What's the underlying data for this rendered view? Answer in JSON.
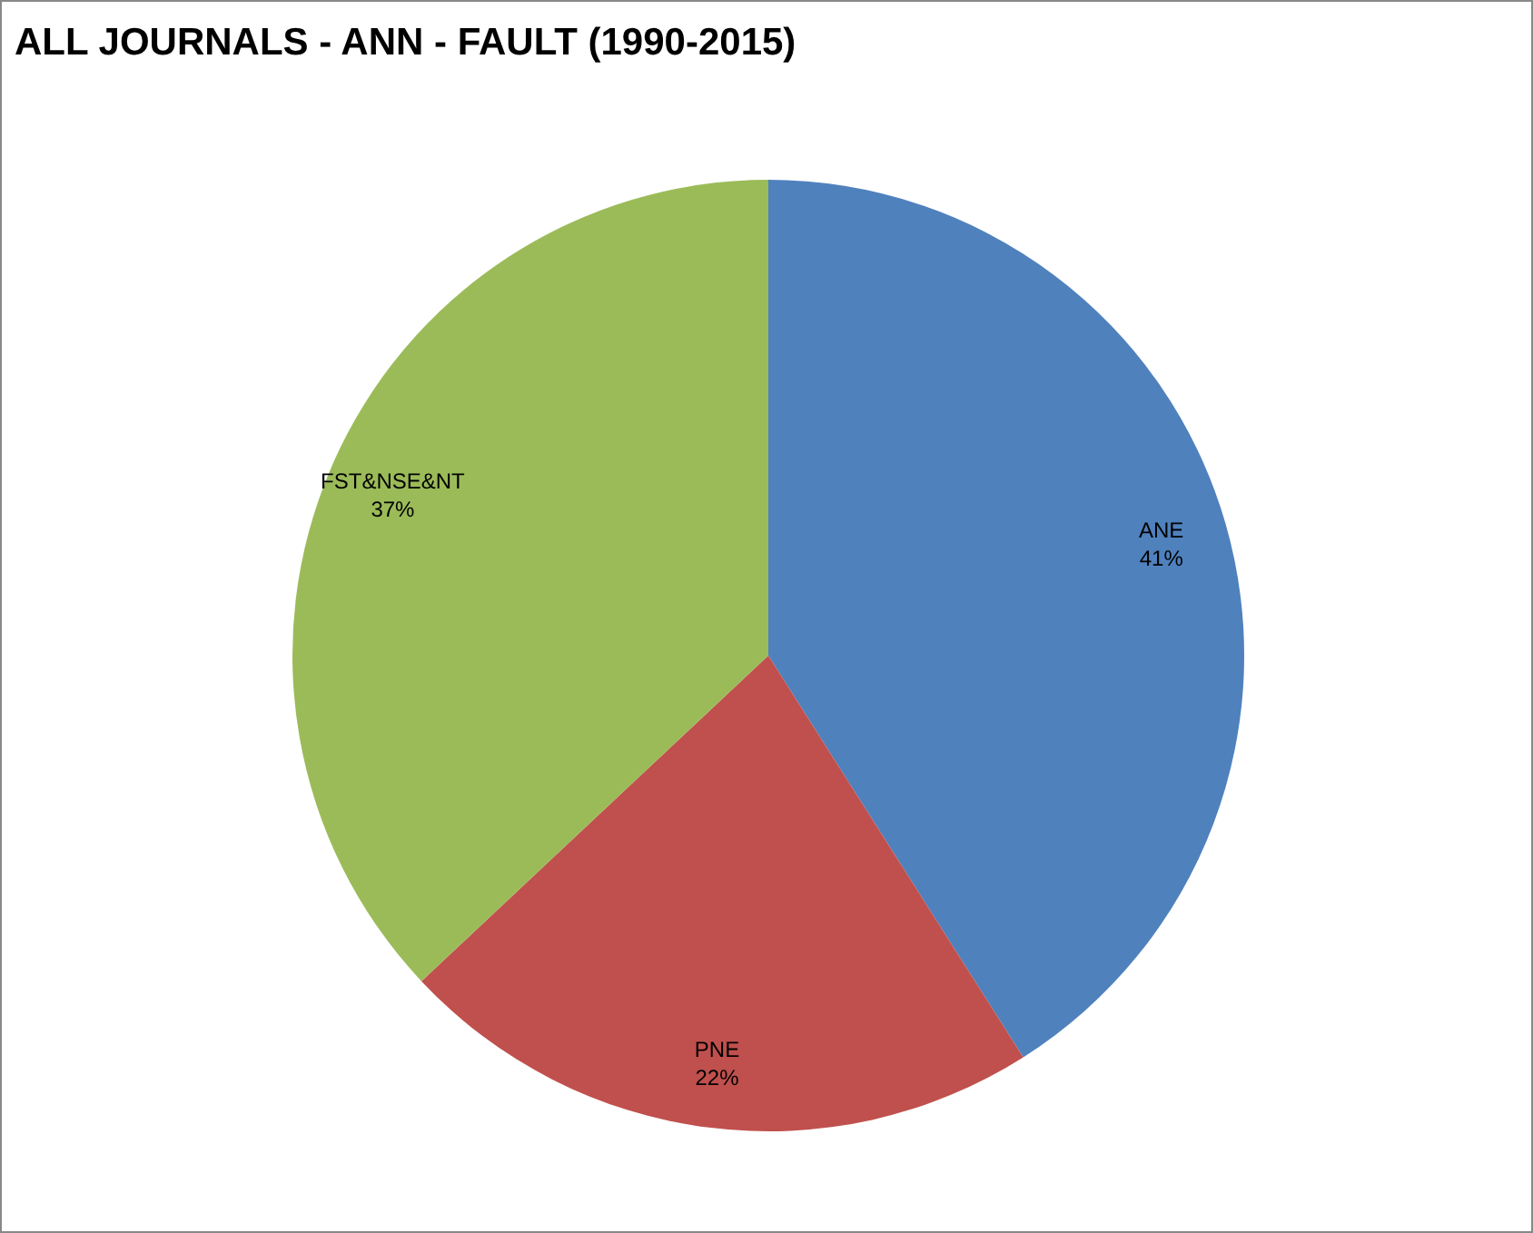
{
  "chart_data": {
    "type": "pie",
    "title": "ALL JOURNALS - ANN - FAULT (1990-2015)",
    "categories": [
      "ANE",
      "PNE",
      "FST&NSE&NT"
    ],
    "values": [
      41,
      22,
      37
    ],
    "value_labels": [
      "41%",
      "22%",
      "37%"
    ],
    "colors": [
      "#4f81bd",
      "#c0504d",
      "#9bbb59"
    ]
  }
}
